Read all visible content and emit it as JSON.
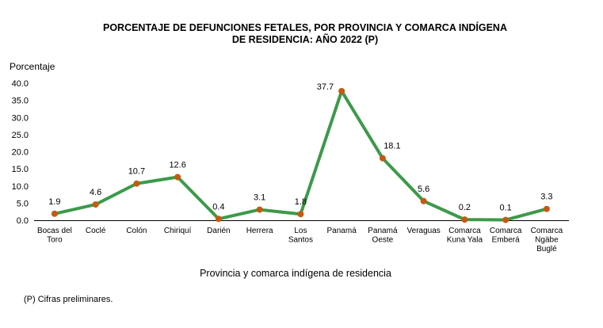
{
  "chart_data": {
    "type": "line",
    "title": [
      "PORCENTAJE  DE DEFUNCIONES  FETALES, POR PROVINCIA Y COMARCA  INDÍGENA",
      "DE RESIDENCIA:  AÑO 2022 (P)"
    ],
    "ylabel": "Porcentaje",
    "xlabel": "Provincia  y comarca indígena  de residencia",
    "ylim": [
      0,
      40
    ],
    "yticks": [
      "0.0",
      "5.0",
      "10.0",
      "15.0",
      "20.0",
      "25.0",
      "30.0",
      "35.0",
      "40.0"
    ],
    "categories": [
      [
        "Bocas del",
        "Toro"
      ],
      [
        "Coclé"
      ],
      [
        "Colón"
      ],
      [
        "Chiriquí"
      ],
      [
        "Darién"
      ],
      [
        "Herrera"
      ],
      [
        "Los",
        "Santos"
      ],
      [
        "Panamá"
      ],
      [
        "Panamá",
        "Oeste"
      ],
      [
        "Veraguas"
      ],
      [
        "Comarca",
        "Kuna Yala"
      ],
      [
        "Comarca",
        "Emberá"
      ],
      [
        "Comarca",
        "Ngäbe",
        "Buglé"
      ]
    ],
    "values": [
      1.9,
      4.6,
      10.7,
      12.6,
      0.4,
      3.1,
      1.8,
      37.7,
      18.1,
      5.6,
      0.2,
      0.1,
      3.3
    ],
    "labels": [
      "1.9",
      "4.6",
      "10.7",
      "12.6",
      "0.4",
      "3.1",
      "1.8",
      "37.7",
      "18.1",
      "5.6",
      "0.2",
      "0.1",
      "3.3"
    ],
    "line_color": "#3c9a4a",
    "marker_color": "#c55a11",
    "grid": false
  },
  "footnote": "(P) Cifras preliminares."
}
